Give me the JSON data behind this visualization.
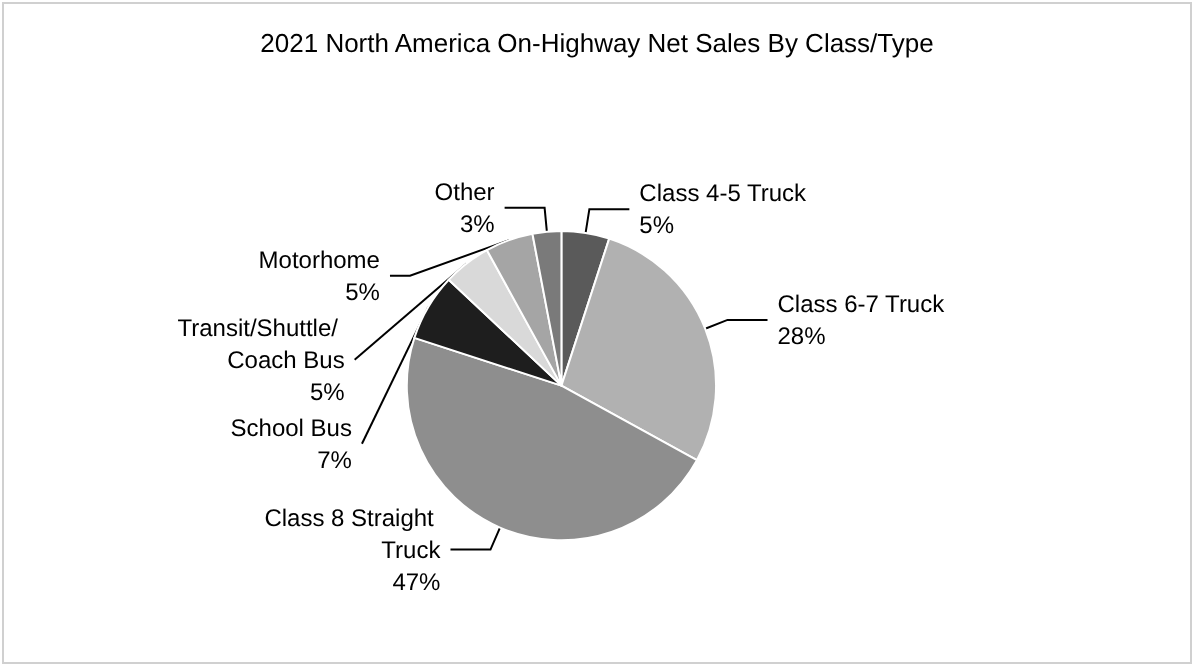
{
  "chart_data": {
    "type": "pie",
    "title": "2021 North America On-Highway Net Sales By Class/Type",
    "categories": [
      "Class 4-5 Truck",
      "Class 6-7 Truck",
      "Class 8 Straight Truck",
      "School Bus",
      "Transit/Shuttle/ Coach Bus",
      "Motorhome",
      "Other"
    ],
    "values": [
      5,
      28,
      47,
      7,
      5,
      5,
      3
    ],
    "value_labels": [
      "5%",
      "28%",
      "47%",
      "7%",
      "5%",
      "5%",
      "3%"
    ],
    "colors": [
      "#5a5a5a",
      "#b1b1b1",
      "#8e8e8e",
      "#1e1e1e",
      "#d9d9d9",
      "#a5a5a5",
      "#7a7a7a"
    ],
    "legend": false
  }
}
